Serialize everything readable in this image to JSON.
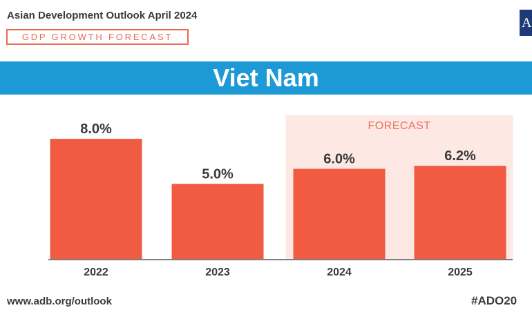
{
  "header": {
    "publication": "Asian Development Outlook April 2024",
    "subtitle": "GDP GROWTH FORECAST",
    "logo_text": "A"
  },
  "banner": {
    "title": "Viet Nam"
  },
  "chart_data": {
    "type": "bar",
    "title": "Viet Nam",
    "categories": [
      "2022",
      "2023",
      "2024",
      "2025"
    ],
    "values": [
      8.0,
      5.0,
      6.0,
      6.2
    ],
    "value_labels": [
      "8.0%",
      "5.0%",
      "6.0%",
      "6.2%"
    ],
    "forecast_label": "FORECAST",
    "forecast_categories": [
      "2024",
      "2025"
    ],
    "ylim": [
      0,
      10
    ],
    "grid": false,
    "colors": {
      "bar": "#f15b42",
      "forecast_bg": "#fde8e4",
      "forecast_text": "#e8735e",
      "axis": "#555555"
    }
  },
  "footer": {
    "url": "www.adb.org/outlook",
    "hashtag": "#ADO20"
  },
  "colors": {
    "banner": "#1d9ad6",
    "accent": "#ea6a55",
    "text": "#3a3a3a"
  }
}
